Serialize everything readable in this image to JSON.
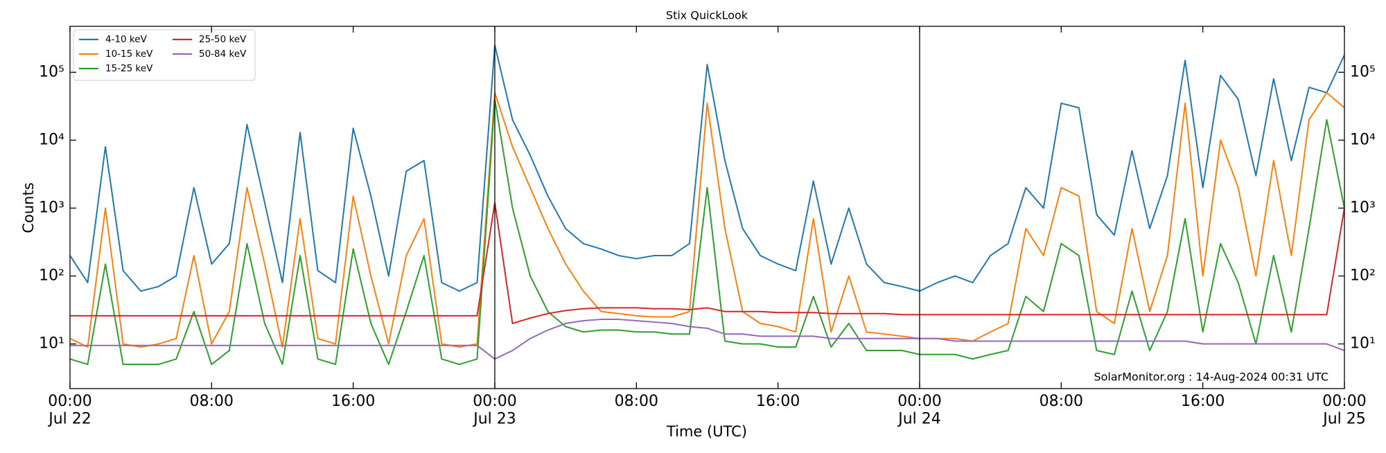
{
  "chart_data": {
    "type": "line",
    "title": "Stix QuickLook",
    "xlabel": "Time (UTC)",
    "ylabel": "Counts",
    "annotation": "SolarMonitor.org : 14-Aug-2024 00:31 UTC",
    "yscale": "log",
    "legend": "upper left",
    "x": [
      0,
      1,
      2,
      3,
      4,
      5,
      6,
      7,
      8,
      9,
      10,
      11,
      12,
      13,
      14,
      15,
      16,
      17,
      18,
      19,
      20,
      21,
      22,
      23,
      24,
      25,
      26,
      27,
      28,
      29,
      30,
      31,
      32,
      33,
      34,
      35,
      36,
      37,
      38,
      39,
      40,
      41,
      42,
      43,
      44,
      45,
      46,
      47,
      48,
      49,
      50,
      51,
      52,
      53,
      54,
      55,
      56,
      57,
      58,
      59,
      60,
      61,
      62,
      63,
      64,
      65,
      66,
      67,
      68,
      69,
      70,
      71,
      72
    ],
    "xlim": [
      0,
      72
    ],
    "xticks": [
      {
        "value": 0,
        "label": "00:00\nJul 22"
      },
      {
        "value": 8,
        "label": "08:00"
      },
      {
        "value": 16,
        "label": "16:00"
      },
      {
        "value": 24,
        "label": "00:00\nJul 23"
      },
      {
        "value": 32,
        "label": "08:00"
      },
      {
        "value": 40,
        "label": "16:00"
      },
      {
        "value": 48,
        "label": "00:00\nJul 24"
      },
      {
        "value": 56,
        "label": "08:00"
      },
      {
        "value": 64,
        "label": "16:00"
      },
      {
        "value": 72,
        "label": "00:00\nJul 25"
      }
    ],
    "ylim": [
      2.2,
      475000
    ],
    "yticks": [
      {
        "value": 10,
        "label": "10¹"
      },
      {
        "value": 100,
        "label": "10²"
      },
      {
        "value": 1000,
        "label": "10³"
      },
      {
        "value": 10000,
        "label": "10⁴"
      },
      {
        "value": 100000,
        "label": "10⁵"
      }
    ],
    "series": [
      {
        "name": "4-10 keV",
        "color": "#1f77b4",
        "values": [
          200,
          80,
          8000,
          120,
          60,
          70,
          100,
          2000,
          150,
          300,
          17000,
          1200,
          80,
          13000,
          120,
          80,
          15000,
          1500,
          100,
          3500,
          5000,
          80,
          60,
          80,
          250000,
          20000,
          6000,
          1500,
          500,
          300,
          250,
          200,
          180,
          200,
          200,
          300,
          130000,
          5000,
          500,
          200,
          150,
          120,
          2500,
          150,
          1000,
          150,
          80,
          70,
          60,
          80,
          100,
          80,
          200,
          300,
          2000,
          1000,
          35000,
          30000,
          800,
          400,
          7000,
          500,
          3000,
          150000,
          2000,
          90000,
          40000,
          3000,
          80000,
          5000,
          60000,
          50000,
          180000
        ]
      },
      {
        "name": "10-15 keV",
        "color": "#ff7f0e",
        "values": [
          12,
          9,
          1000,
          10,
          9,
          10,
          12,
          200,
          10,
          30,
          2000,
          150,
          9,
          700,
          12,
          10,
          1500,
          100,
          10,
          200,
          700,
          10,
          9,
          10,
          50000,
          8000,
          2000,
          500,
          150,
          60,
          30,
          28,
          26,
          25,
          25,
          30,
          35000,
          500,
          30,
          20,
          18,
          15,
          700,
          15,
          100,
          15,
          14,
          13,
          12,
          12,
          12,
          11,
          15,
          20,
          500,
          200,
          2000,
          1500,
          30,
          20,
          500,
          30,
          200,
          35000,
          100,
          10000,
          2000,
          100,
          5000,
          200,
          20000,
          50000,
          30000
        ]
      },
      {
        "name": "15-25 keV",
        "color": "#2ca02c",
        "values": [
          6,
          5,
          150,
          5,
          5,
          5,
          6,
          30,
          5,
          8,
          300,
          20,
          5,
          200,
          6,
          5,
          250,
          20,
          5,
          30,
          200,
          6,
          5,
          6,
          40000,
          1000,
          100,
          30,
          18,
          15,
          16,
          16,
          15,
          15,
          14,
          14,
          2000,
          11,
          10,
          10,
          9,
          9,
          50,
          9,
          20,
          8,
          8,
          8,
          7,
          7,
          7,
          6,
          7,
          8,
          50,
          30,
          300,
          200,
          8,
          7,
          60,
          8,
          30,
          700,
          15,
          300,
          80,
          10,
          200,
          15,
          500,
          20000,
          1000
        ]
      },
      {
        "name": "25-50 keV",
        "color": "#d62728",
        "values": [
          26,
          26,
          26,
          26,
          26,
          26,
          26,
          26,
          26,
          26,
          26,
          26,
          26,
          26,
          26,
          26,
          26,
          26,
          26,
          26,
          26,
          26,
          26,
          26,
          1200,
          20,
          24,
          28,
          31,
          33,
          34,
          34,
          34,
          33,
          33,
          32,
          34,
          30,
          30,
          30,
          29,
          29,
          29,
          28,
          28,
          28,
          28,
          27,
          27,
          27,
          27,
          27,
          27,
          27,
          27,
          27,
          27,
          27,
          27,
          27,
          27,
          27,
          27,
          27,
          27,
          27,
          27,
          27,
          27,
          27,
          27,
          27,
          1000
        ]
      },
      {
        "name": "50-84 keV",
        "color": "#9467bd",
        "values": [
          9.5,
          9.5,
          9.5,
          9.5,
          9.5,
          9.5,
          9.5,
          9.5,
          9.5,
          9.5,
          9.5,
          9.5,
          9.5,
          9.5,
          9.5,
          9.5,
          9.5,
          9.5,
          9.5,
          9.5,
          9.5,
          9.5,
          9.5,
          9.5,
          6,
          8,
          12,
          16,
          20,
          22,
          23,
          23,
          22,
          21,
          20,
          18,
          17,
          14,
          14,
          13,
          13,
          13,
          13,
          12,
          12,
          12,
          12,
          12,
          12,
          12,
          11,
          11,
          11,
          11,
          11,
          11,
          11,
          11,
          11,
          11,
          11,
          11,
          11,
          11,
          10,
          10,
          10,
          10,
          10,
          10,
          10,
          10,
          8
        ]
      }
    ]
  }
}
